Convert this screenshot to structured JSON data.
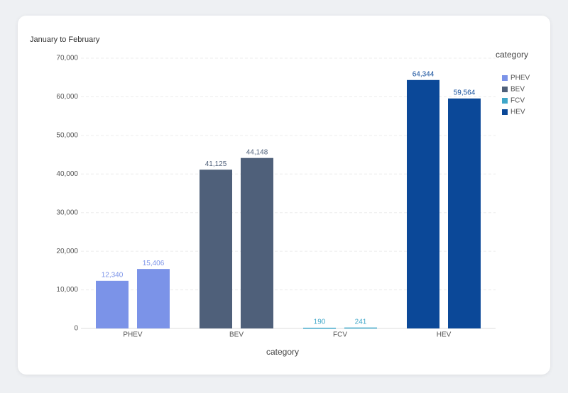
{
  "chart_data": {
    "type": "bar",
    "title": "January to February",
    "categories": [
      "PHEV",
      "BEV",
      "FCV",
      "HEV"
    ],
    "colors": [
      "#7b93e8",
      "#4f607a",
      "#3fa7c9",
      "#0b4898"
    ],
    "series": [
      {
        "values": [
          12340,
          41125,
          190,
          64344
        ],
        "value_labels": [
          "12,340",
          "41,125",
          "190",
          "64,344"
        ]
      },
      {
        "values": [
          15406,
          44148,
          241,
          59564
        ],
        "value_labels": [
          "15,406",
          "44,148",
          "241",
          "59,564"
        ]
      }
    ],
    "x_label": "category",
    "legend_title": "category",
    "legend_position": "right",
    "ylim": [
      0,
      70000
    ],
    "yticks": [
      0,
      {
        "value": 10000,
        "label": "10,000"
      },
      {
        "value": 20000,
        "label": "20,000"
      },
      {
        "value": 30000,
        "label": "30,000"
      },
      {
        "value": 40000,
        "label": "40,000"
      },
      {
        "value": 50000,
        "label": "50,000"
      },
      {
        "value": 60000,
        "label": "60,000"
      },
      {
        "value": 70000,
        "label": "70,000"
      }
    ],
    "grid": true
  }
}
